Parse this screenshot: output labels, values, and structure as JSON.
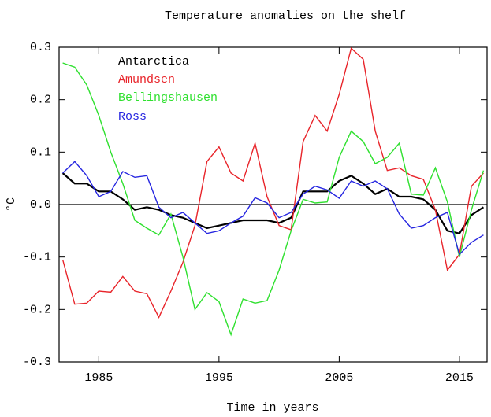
{
  "chart_data": {
    "type": "line",
    "title": "Temperature anomalies on the shelf",
    "x_label": "Time in years",
    "y_label": "°C",
    "x": [
      1982,
      1983,
      1984,
      1985,
      1986,
      1987,
      1988,
      1989,
      1990,
      1991,
      1992,
      1993,
      1994,
      1995,
      1996,
      1997,
      1998,
      1999,
      2000,
      2001,
      2002,
      2003,
      2004,
      2005,
      2006,
      2007,
      2008,
      2009,
      2010,
      2011,
      2012,
      2013,
      2014,
      2015,
      2016,
      2017
    ],
    "series": [
      {
        "name": "Antarctica",
        "color": "#000000",
        "values": [
          0.06,
          0.04,
          0.04,
          0.025,
          0.025,
          0.01,
          -0.01,
          -0.005,
          -0.01,
          -0.02,
          -0.025,
          -0.035,
          -0.045,
          -0.04,
          -0.035,
          -0.03,
          -0.03,
          -0.03,
          -0.035,
          -0.025,
          0.025,
          0.025,
          0.025,
          0.045,
          0.055,
          0.04,
          0.02,
          0.03,
          0.015,
          0.015,
          0.01,
          -0.01,
          -0.05,
          -0.055,
          -0.02,
          -0.005
        ]
      },
      {
        "name": "Amundsen",
        "color": "#e8242a",
        "values": [
          -0.105,
          -0.19,
          -0.188,
          -0.165,
          -0.167,
          -0.137,
          -0.165,
          -0.17,
          -0.215,
          -0.165,
          -0.11,
          -0.04,
          0.082,
          0.11,
          0.06,
          0.045,
          0.117,
          0.015,
          -0.04,
          -0.048,
          0.12,
          0.17,
          0.14,
          0.21,
          0.298,
          0.277,
          0.14,
          0.065,
          0.07,
          0.055,
          0.048,
          -0.01,
          -0.125,
          -0.095,
          0.035,
          0.06
        ]
      },
      {
        "name": "Bellingshausen",
        "color": "#2fe02f",
        "values": [
          0.27,
          0.262,
          0.228,
          0.17,
          0.1,
          0.04,
          -0.03,
          -0.045,
          -0.058,
          -0.018,
          -0.1,
          -0.2,
          -0.168,
          -0.185,
          -0.248,
          -0.18,
          -0.188,
          -0.183,
          -0.125,
          -0.05,
          0.01,
          0.003,
          0.005,
          0.09,
          0.14,
          0.12,
          0.078,
          0.09,
          0.117,
          0.02,
          0.018,
          0.07,
          0.005,
          -0.1,
          -0.01,
          0.065
        ]
      },
      {
        "name": "Ross",
        "color": "#2525e0",
        "values": [
          0.06,
          0.082,
          0.055,
          0.015,
          0.025,
          0.063,
          0.052,
          0.055,
          -0.005,
          -0.025,
          -0.015,
          -0.035,
          -0.055,
          -0.05,
          -0.035,
          -0.022,
          0.013,
          0.003,
          -0.025,
          -0.015,
          0.02,
          0.035,
          0.028,
          0.012,
          0.045,
          0.035,
          0.045,
          0.03,
          -0.018,
          -0.045,
          -0.04,
          -0.025,
          -0.015,
          -0.095,
          -0.072,
          -0.058
        ]
      }
    ],
    "xlim": [
      1981.7,
      2017.3
    ],
    "xticks": [
      1985,
      1995,
      2005,
      2015
    ],
    "ylim": [
      -0.3,
      0.3
    ],
    "yticks": [
      -0.3,
      -0.2,
      -0.1,
      {
        "value": 0,
        "label": "0.0"
      },
      0.1,
      0.2,
      0.3
    ],
    "zero_line": 0,
    "legend": "upper left"
  }
}
